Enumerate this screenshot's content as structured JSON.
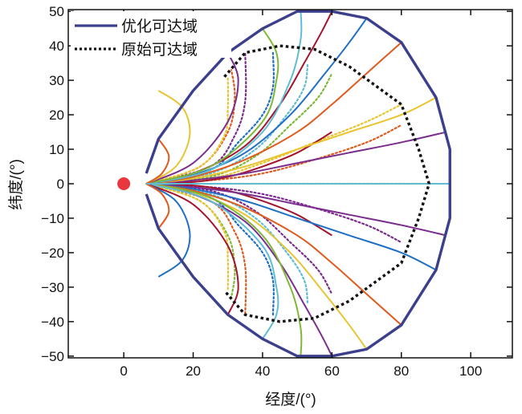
{
  "chart_data": {
    "type": "line",
    "title": "",
    "xlabel": "经度/(°)",
    "ylabel": "纬度/(°)",
    "xlim": [
      -16,
      112
    ],
    "ylim": [
      -50.5,
      50.5
    ],
    "xticks": [
      0,
      20,
      40,
      60,
      80,
      100
    ],
    "yticks": [
      -50,
      -40,
      -30,
      -20,
      -10,
      0,
      10,
      20,
      30,
      40,
      50
    ],
    "xtick_labels": [
      "0",
      "20",
      "40",
      "60",
      "80",
      "100"
    ],
    "ytick_labels": [
      "−50",
      "−40",
      "−30",
      "−20",
      "−10",
      "0",
      "10",
      "20",
      "30",
      "40",
      "50"
    ],
    "legend": {
      "position": "top-left",
      "entries": [
        "优化可达域",
        "原始可达域"
      ]
    },
    "start_point": {
      "x": 0,
      "y": 0,
      "color": "#e8383d"
    },
    "colors": {
      "optimized_boundary": "#3b3f8c",
      "original_boundary": "#111111",
      "palette": [
        "#1f6fc4",
        "#e05a1e",
        "#e8c431",
        "#7b2d8e",
        "#7fb838",
        "#5fbcd3",
        "#a3142d"
      ]
    },
    "series": [
      {
        "name": "优化可达域",
        "style": "solid",
        "color": "#3b3f8c",
        "x": [
          6.5,
          10,
          20,
          30,
          40,
          50,
          60,
          70,
          80,
          90,
          94,
          94,
          90,
          80,
          70,
          60,
          50,
          40,
          30,
          20,
          10,
          6.5
        ],
        "y": [
          3,
          13,
          27,
          38,
          45,
          50,
          50,
          48,
          41,
          25,
          10,
          -10,
          -25,
          -41,
          -48,
          -50,
          -50,
          -45,
          -38,
          -27,
          -13,
          -3
        ]
      },
      {
        "name": "原始可达域",
        "style": "dotted",
        "color": "#111111",
        "x": [
          29,
          35,
          45,
          55,
          65,
          80,
          85,
          88,
          88,
          85,
          80,
          65,
          55,
          45,
          35,
          29
        ],
        "y": [
          31,
          38,
          40,
          39,
          34,
          23,
          10,
          0,
          0,
          -10,
          -23,
          -34,
          -39,
          -40,
          -38,
          -31
        ]
      }
    ],
    "trajectories_solid": [
      {
        "color": "#a3142d",
        "x": [
          6.5,
          20,
          30,
          40,
          50,
          60
        ],
        "y": [
          0,
          0.5,
          2,
          5,
          9,
          15
        ]
      },
      {
        "color": "#7b2d8e",
        "x": [
          6.5,
          20,
          35,
          50,
          65,
          80,
          93
        ],
        "y": [
          0,
          1,
          3,
          6,
          9,
          12,
          15
        ]
      },
      {
        "color": "#e8c431",
        "x": [
          6.5,
          20,
          35,
          50,
          65,
          80,
          90
        ],
        "y": [
          0,
          1.5,
          5,
          10,
          15,
          20,
          25
        ]
      },
      {
        "color": "#e05a1e",
        "x": [
          6.5,
          20,
          35,
          50,
          60,
          70,
          80
        ],
        "y": [
          0,
          2,
          7,
          15,
          23,
          32,
          41
        ]
      },
      {
        "color": "#1f6fc4",
        "x": [
          6.5,
          20,
          35,
          48,
          58,
          65,
          70
        ],
        "y": [
          0,
          2.5,
          9,
          20,
          32,
          41,
          48
        ]
      },
      {
        "color": "#a3142d",
        "x": [
          6.5,
          20,
          35,
          45,
          52,
          57,
          60
        ],
        "y": [
          0,
          3,
          11,
          23,
          35,
          44,
          50
        ]
      },
      {
        "color": "#5fbcd3",
        "x": [
          6.5,
          25,
          40,
          48,
          51,
          51
        ],
        "y": [
          0,
          4,
          15,
          30,
          42,
          50
        ]
      },
      {
        "color": "#7fb838",
        "x": [
          6.5,
          25,
          40,
          44,
          44,
          40
        ],
        "y": [
          0,
          5,
          18,
          30,
          38,
          45
        ]
      },
      {
        "color": "#7b2d8e",
        "x": [
          6.5,
          20,
          30,
          33,
          30
        ],
        "y": [
          0,
          6,
          18,
          30,
          38
        ]
      },
      {
        "color": "#e8c431",
        "x": [
          6.5,
          15,
          19,
          17,
          10
        ],
        "y": [
          0,
          5,
          14,
          22,
          27
        ]
      },
      {
        "color": "#e05a1e",
        "x": [
          6.5,
          11,
          13,
          10
        ],
        "y": [
          0,
          3,
          8,
          13
        ]
      },
      {
        "color": "#a3142d",
        "x": [
          6.5,
          20,
          30,
          40,
          50,
          60
        ],
        "y": [
          0,
          -0.5,
          -2,
          -5,
          -9,
          -15
        ]
      },
      {
        "color": "#7b2d8e",
        "x": [
          6.5,
          20,
          35,
          50,
          65,
          80,
          93
        ],
        "y": [
          0,
          -1,
          -3,
          -6,
          -9,
          -12,
          -15
        ]
      },
      {
        "color": "#1f6fc4",
        "x": [
          6.5,
          20,
          35,
          50,
          65,
          80,
          90
        ],
        "y": [
          0,
          -1.5,
          -5,
          -10,
          -15,
          -20,
          -25
        ]
      },
      {
        "color": "#e05a1e",
        "x": [
          6.5,
          20,
          35,
          50,
          60,
          70,
          80
        ],
        "y": [
          0,
          -2,
          -7,
          -15,
          -23,
          -32,
          -41
        ]
      },
      {
        "color": "#e8c431",
        "x": [
          6.5,
          20,
          35,
          48,
          58,
          65,
          70
        ],
        "y": [
          0,
          -2.5,
          -9,
          -20,
          -32,
          -41,
          -48
        ]
      },
      {
        "color": "#7b2d8e",
        "x": [
          6.5,
          20,
          35,
          45,
          52,
          57,
          60
        ],
        "y": [
          0,
          -3,
          -11,
          -23,
          -35,
          -44,
          -50
        ]
      },
      {
        "color": "#7fb838",
        "x": [
          6.5,
          25,
          40,
          48,
          51,
          51
        ],
        "y": [
          0,
          -4,
          -15,
          -30,
          -42,
          -50
        ]
      },
      {
        "color": "#5fbcd3",
        "x": [
          6.5,
          25,
          40,
          44,
          44,
          40
        ],
        "y": [
          0,
          -5,
          -18,
          -30,
          -38,
          -45
        ]
      },
      {
        "color": "#a3142d",
        "x": [
          6.5,
          20,
          30,
          33,
          30
        ],
        "y": [
          0,
          -6,
          -18,
          -30,
          -38
        ]
      },
      {
        "color": "#1f6fc4",
        "x": [
          6.5,
          15,
          19,
          17,
          10
        ],
        "y": [
          0,
          -5,
          -14,
          -22,
          -27
        ]
      },
      {
        "color": "#e05a1e",
        "x": [
          6.5,
          11,
          13,
          10
        ],
        "y": [
          0,
          -3,
          -8,
          -13
        ]
      },
      {
        "color": "#5fbcd3",
        "x": [
          6.5,
          94
        ],
        "y": [
          0,
          0
        ]
      }
    ],
    "trajectories_dotted": [
      {
        "color": "#e05a1e",
        "x": [
          6.5,
          25,
          40,
          55,
          70,
          80
        ],
        "y": [
          0,
          1,
          3,
          7,
          12,
          17
        ]
      },
      {
        "color": "#e8c431",
        "x": [
          6.5,
          25,
          40,
          55,
          70,
          80
        ],
        "y": [
          0,
          1.5,
          6,
          12,
          18,
          23
        ]
      },
      {
        "color": "#7fb838",
        "x": [
          6.5,
          25,
          38,
          48,
          56,
          60
        ],
        "y": [
          0,
          2,
          8,
          17,
          25,
          32
        ]
      },
      {
        "color": "#5fbcd3",
        "x": [
          6.5,
          25,
          38,
          47,
          52,
          53
        ],
        "y": [
          0,
          3,
          10,
          20,
          28,
          35
        ]
      },
      {
        "color": "#1f6fc4",
        "x": [
          6.5,
          25,
          33,
          40,
          43,
          43
        ],
        "y": [
          0,
          4,
          12,
          20,
          28,
          38
        ]
      },
      {
        "color": "#7b2d8e",
        "x": [
          6.5,
          25,
          32,
          35,
          35
        ],
        "y": [
          0,
          5,
          14,
          24,
          38
        ]
      },
      {
        "color": "#e05a1e",
        "x": [
          6.5,
          22,
          30,
          32,
          31
        ],
        "y": [
          0,
          5,
          15,
          25,
          33
        ]
      },
      {
        "color": "#e8c431",
        "x": [
          6.5,
          22,
          29,
          30,
          30
        ],
        "y": [
          0,
          5,
          14,
          22,
          31
        ]
      },
      {
        "color": "#7b2d8e",
        "x": [
          6.5,
          25,
          40,
          55,
          70,
          80
        ],
        "y": [
          0,
          -1,
          -3,
          -7,
          -12,
          -17
        ]
      },
      {
        "color": "#7b2d8e",
        "x": [
          6.5,
          25,
          38,
          48,
          56,
          60
        ],
        "y": [
          0,
          -2,
          -8,
          -17,
          -25,
          -32
        ]
      },
      {
        "color": "#5fbcd3",
        "x": [
          6.5,
          25,
          38,
          47,
          52,
          53
        ],
        "y": [
          0,
          -3,
          -10,
          -20,
          -28,
          -35
        ]
      },
      {
        "color": "#1f6fc4",
        "x": [
          6.5,
          25,
          33,
          40,
          43,
          43
        ],
        "y": [
          0,
          -4,
          -12,
          -20,
          -28,
          -38
        ]
      },
      {
        "color": "#e05a1e",
        "x": [
          6.5,
          25,
          32,
          35,
          35
        ],
        "y": [
          0,
          -5,
          -14,
          -24,
          -38
        ]
      },
      {
        "color": "#7fb838",
        "x": [
          6.5,
          22,
          30,
          32,
          31
        ],
        "y": [
          0,
          -5,
          -15,
          -25,
          -33
        ]
      },
      {
        "color": "#e8c431",
        "x": [
          6.5,
          22,
          29,
          30,
          30
        ],
        "y": [
          0,
          -5,
          -14,
          -22,
          -31
        ]
      },
      {
        "color": "#e8c431",
        "x": [
          6.5,
          88
        ],
        "y": [
          0,
          0
        ]
      }
    ]
  }
}
